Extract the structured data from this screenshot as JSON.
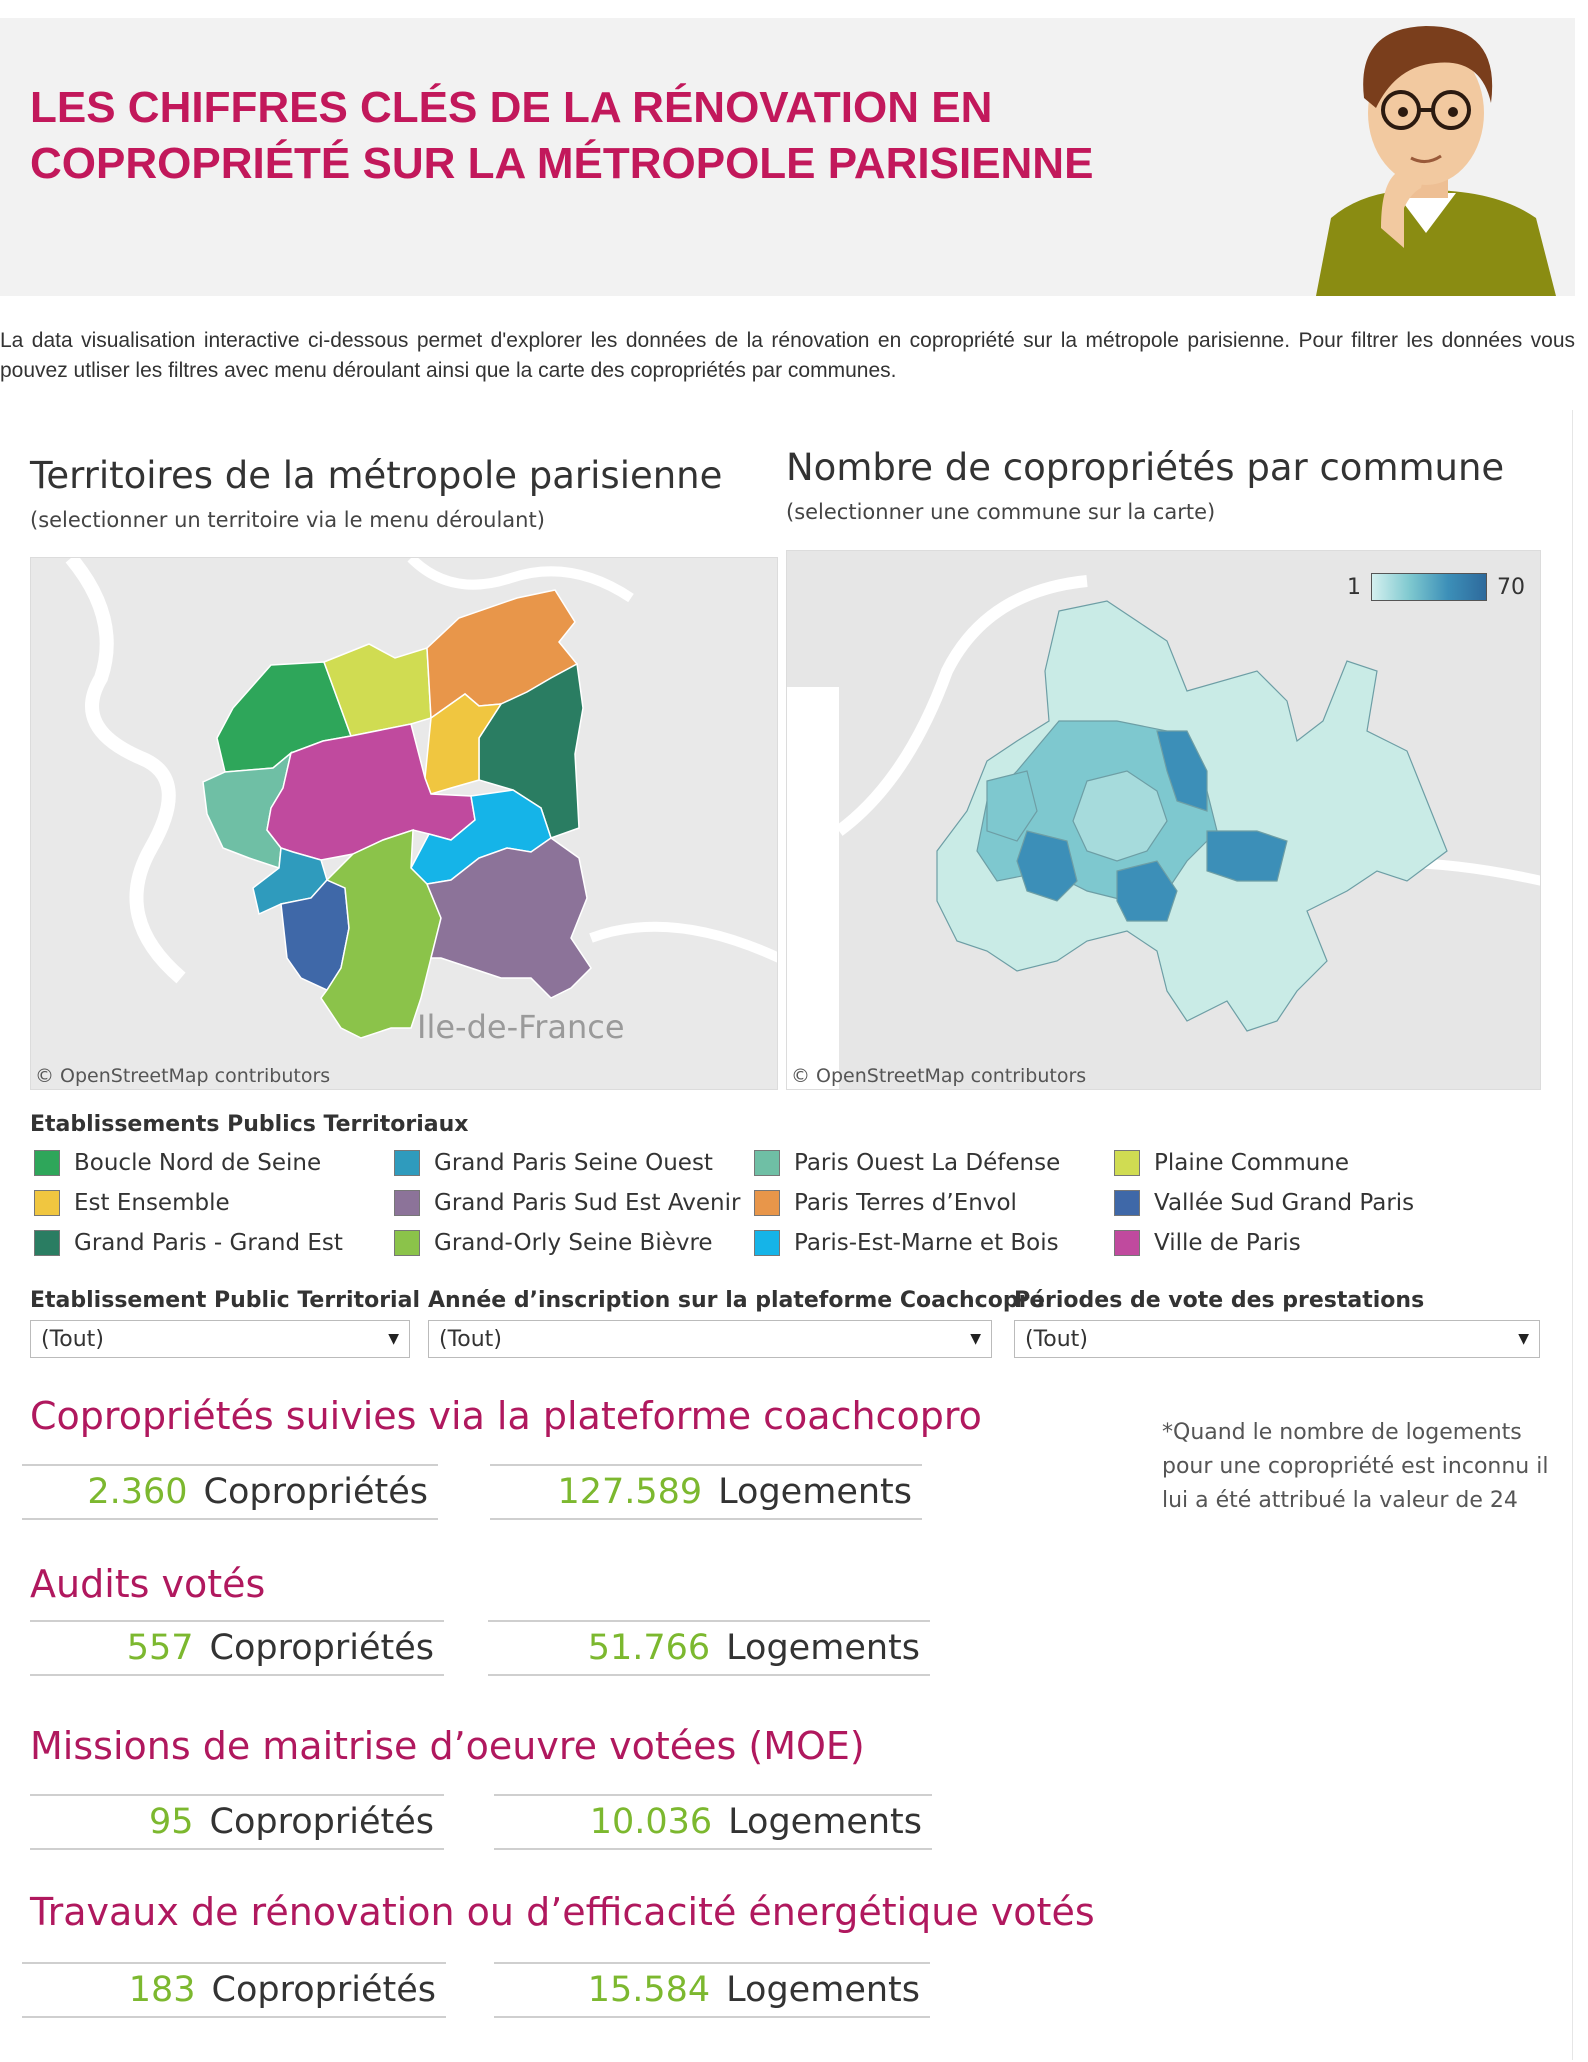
{
  "header": {
    "title_line1": "LES CHIFFRES CLÉS DE LA RÉNOVATION EN",
    "title_line2": "COPROPRIÉTÉ SUR LA MÉTROPOLE PARISIENNE"
  },
  "intro": "La data visualisation interactive ci-dessous permet d'explorer les données de la rénovation en copropriété sur la métropole parisienne. Pour filtrer les données vous pouvez utliser les filtres avec menu déroulant ainsi que la carte des copropriétés par communes.",
  "left_panel": {
    "title": "Territoires de la métropole parisienne",
    "subtitle": "(selectionner un territoire via le menu déroulant)",
    "region_label": "Ile-de-France",
    "attribution": "© OpenStreetMap contributors"
  },
  "right_panel": {
    "title": "Nombre de copropriétés par commune",
    "subtitle": "(selectionner une commune sur la carte)",
    "scale_min": "1",
    "scale_max": "70",
    "attribution": "© OpenStreetMap contributors"
  },
  "legend": {
    "title": "Etablissements Publics Territoriaux",
    "items": [
      {
        "label": "Boucle Nord de Seine",
        "color": "#2ea65a"
      },
      {
        "label": "Est Ensemble",
        "color": "#f0c640"
      },
      {
        "label": "Grand Paris - Grand Est",
        "color": "#2a7d62"
      },
      {
        "label": "Grand Paris Seine Ouest",
        "color": "#2f9bbd"
      },
      {
        "label": "Grand Paris Sud Est Avenir",
        "color": "#8c7399"
      },
      {
        "label": "Grand-Orly Seine Bièvre",
        "color": "#8bc34a"
      },
      {
        "label": "Paris Ouest La Défense",
        "color": "#6fbfa5"
      },
      {
        "label": "Paris Terres d’Envol",
        "color": "#e8964a"
      },
      {
        "label": "Paris-Est-Marne et Bois",
        "color": "#15b4e8"
      },
      {
        "label": "Plaine Commune",
        "color": "#d0dc52"
      },
      {
        "label": "Vallée Sud Grand Paris",
        "color": "#3f68a8"
      },
      {
        "label": "Ville de Paris",
        "color": "#c04a9e"
      }
    ]
  },
  "filters": [
    {
      "label": "Etablissement Public Territorial",
      "value": "(Tout)"
    },
    {
      "label": "Année d’inscription sur la plateforme Coachcopro",
      "value": "(Tout)"
    },
    {
      "label": "Périodes de vote des prestations",
      "value": "(Tout)"
    }
  ],
  "sections": [
    {
      "title": "Copropriétés suivies via la plateforme coachcopro",
      "copros": "2.360",
      "logements": "127.589"
    },
    {
      "title": "Audits votés",
      "copros": "557",
      "logements": "51.766"
    },
    {
      "title": "Missions de maitrise d’oeuvre votées (MOE)",
      "copros": "95",
      "logements": "10.036"
    },
    {
      "title": "Travaux de rénovation ou d’efficacité énergétique votés",
      "copros": "183",
      "logements": "15.584"
    }
  ],
  "units": {
    "copros": "Copropriétés",
    "logements": "Logements"
  },
  "note": "*Quand le nombre de logements pour une copropriété est inconnu il lui a été attribué la valeur de 24"
}
